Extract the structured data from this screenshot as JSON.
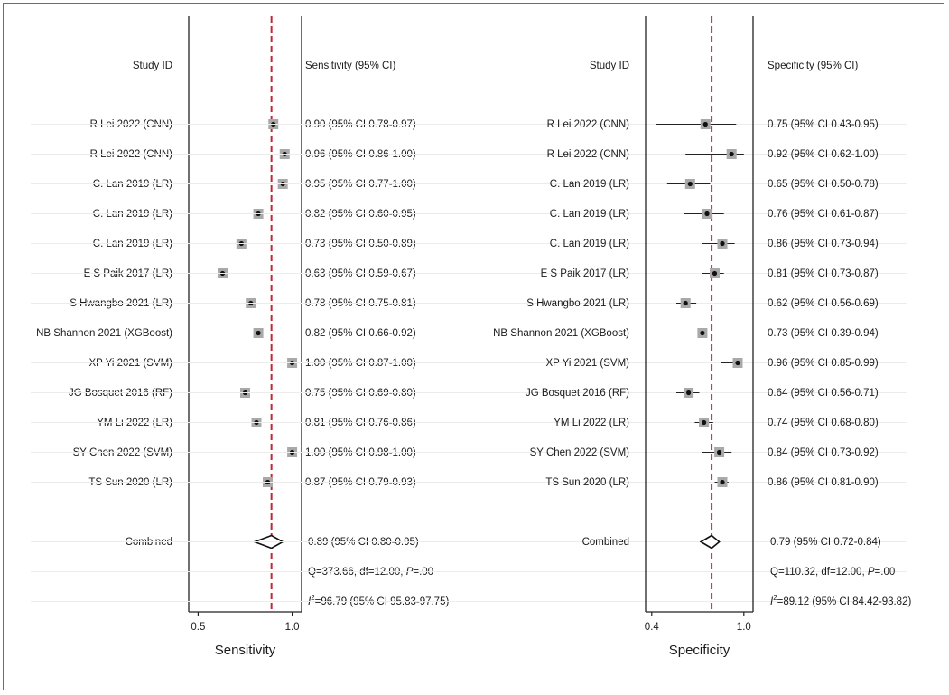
{
  "chart_data": [
    {
      "type": "forest",
      "xlabel": "Sensitivity",
      "study_header": "Study ID",
      "value_header": "Sensitivity (95% CI)",
      "xlim": [
        0.45,
        1.05
      ],
      "ticks": [
        0.5,
        1.0
      ],
      "tick_labels": [
        "0.5",
        "1.0"
      ],
      "reference_line": 0.89,
      "studies": [
        {
          "name": "R Lei 2022 (CNN)",
          "est": 0.9,
          "lo": 0.78,
          "hi": 0.97,
          "text": "0.90 (95% CI 0.78-0.97)"
        },
        {
          "name": "R Lei 2022 (CNN)",
          "est": 0.96,
          "lo": 0.86,
          "hi": 1.0,
          "text": "0.96 (95% CI 0.86-1.00)"
        },
        {
          "name": "C. Lan 2019 (LR)",
          "est": 0.95,
          "lo": 0.77,
          "hi": 1.0,
          "text": "0.95 (95% CI 0.77-1.00)"
        },
        {
          "name": "C. Lan 2019 (LR)",
          "est": 0.82,
          "lo": 0.6,
          "hi": 0.95,
          "text": "0.82 (95% CI 0.60-0.95)"
        },
        {
          "name": "C. Lan 2019 (LR)",
          "est": 0.73,
          "lo": 0.5,
          "hi": 0.89,
          "text": "0.73 (95% CI 0.50-0.89)"
        },
        {
          "name": "E S Paik 2017 (LR)",
          "est": 0.63,
          "lo": 0.59,
          "hi": 0.67,
          "text": "0.63 (95% CI 0.59-0.67)"
        },
        {
          "name": "S Hwangbo 2021 (LR)",
          "est": 0.78,
          "lo": 0.75,
          "hi": 0.81,
          "text": "0.78 (95% CI 0.75-0.81)"
        },
        {
          "name": "NB Shannon 2021 (XGBoost)",
          "est": 0.82,
          "lo": 0.66,
          "hi": 0.92,
          "text": "0.82 (95% CI 0.66-0.92)"
        },
        {
          "name": "XP Yi 2021 (SVM)",
          "est": 1.0,
          "lo": 0.87,
          "hi": 1.0,
          "text": "1.00 (95% CI 0.87-1.00)"
        },
        {
          "name": "JG Bosquet 2016 (RF)",
          "est": 0.75,
          "lo": 0.69,
          "hi": 0.8,
          "text": "0.75 (95% CI 0.69-0.80)"
        },
        {
          "name": "YM Li 2022 (LR)",
          "est": 0.81,
          "lo": 0.76,
          "hi": 0.86,
          "text": "0.81 (95% CI 0.76-0.86)"
        },
        {
          "name": "SY Chen 2022 (SVM)",
          "est": 1.0,
          "lo": 0.98,
          "hi": 1.0,
          "text": "1.00 (95% CI 0.98-1.00)"
        },
        {
          "name": "TS Sun 2020 (LR)",
          "est": 0.87,
          "lo": 0.79,
          "hi": 0.93,
          "text": "0.87 (95% CI 0.79-0.93)"
        }
      ],
      "combined": {
        "name": "Combined",
        "est": 0.89,
        "lo": 0.8,
        "hi": 0.95,
        "text": "0.89 (95% CI 0.80-0.95)"
      },
      "heterogeneity": {
        "q_text": "Q=373.66, df=12.00, ",
        "p_label": "P",
        "p_text": "=.00",
        "i2_symbol": "I",
        "i2_exponent": "2",
        "i2_text": "=96.79 (95% CI 95.83-97.75)"
      }
    },
    {
      "type": "forest",
      "xlabel": "Specificity",
      "study_header": "Study ID",
      "value_header": "Specificity (95% CI)",
      "xlim": [
        0.36,
        1.06
      ],
      "ticks": [
        0.4,
        1.0
      ],
      "tick_labels": [
        "0.4",
        "1.0"
      ],
      "reference_line": 0.79,
      "studies": [
        {
          "name": "R Lei 2022 (CNN)",
          "est": 0.75,
          "lo": 0.43,
          "hi": 0.95,
          "text": "0.75 (95% CI 0.43-0.95)"
        },
        {
          "name": "R Lei 2022 (CNN)",
          "est": 0.92,
          "lo": 0.62,
          "hi": 1.0,
          "text": "0.92 (95% CI 0.62-1.00)"
        },
        {
          "name": "C. Lan 2019 (LR)",
          "est": 0.65,
          "lo": 0.5,
          "hi": 0.78,
          "text": "0.65 (95% CI 0.50-0.78)"
        },
        {
          "name": "C. Lan 2019 (LR)",
          "est": 0.76,
          "lo": 0.61,
          "hi": 0.87,
          "text": "0.76 (95% CI 0.61-0.87)"
        },
        {
          "name": "C. Lan 2019 (LR)",
          "est": 0.86,
          "lo": 0.73,
          "hi": 0.94,
          "text": "0.86 (95% CI 0.73-0.94)"
        },
        {
          "name": "E S Paik 2017 (LR)",
          "est": 0.81,
          "lo": 0.73,
          "hi": 0.87,
          "text": "0.81 (95% CI 0.73-0.87)"
        },
        {
          "name": "S Hwangbo 2021 (LR)",
          "est": 0.62,
          "lo": 0.56,
          "hi": 0.69,
          "text": "0.62 (95% CI 0.56-0.69)"
        },
        {
          "name": "NB Shannon 2021 (XGBoost)",
          "est": 0.73,
          "lo": 0.39,
          "hi": 0.94,
          "text": "0.73 (95% CI 0.39-0.94)"
        },
        {
          "name": "XP Yi 2021 (SVM)",
          "est": 0.96,
          "lo": 0.85,
          "hi": 0.99,
          "text": "0.96 (95% CI 0.85-0.99)"
        },
        {
          "name": "JG Bosquet 2016 (RF)",
          "est": 0.64,
          "lo": 0.56,
          "hi": 0.71,
          "text": "0.64 (95% CI 0.56-0.71)"
        },
        {
          "name": "YM Li 2022 (LR)",
          "est": 0.74,
          "lo": 0.68,
          "hi": 0.8,
          "text": "0.74 (95% CI 0.68-0.80)"
        },
        {
          "name": "SY Chen 2022 (SVM)",
          "est": 0.84,
          "lo": 0.73,
          "hi": 0.92,
          "text": "0.84 (95% CI 0.73-0.92)"
        },
        {
          "name": "TS Sun 2020 (LR)",
          "est": 0.86,
          "lo": 0.81,
          "hi": 0.9,
          "text": "0.86 (95% CI 0.81-0.90)"
        }
      ],
      "combined": {
        "name": "Combined",
        "est": 0.79,
        "lo": 0.72,
        "hi": 0.84,
        "text": "0.79 (95% CI 0.72-0.84)"
      },
      "heterogeneity": {
        "q_text": "Q=110.32, df=12.00, ",
        "p_label": "P",
        "p_text": "=.00",
        "i2_symbol": "I",
        "i2_exponent": "2",
        "i2_text": "=89.12 (95% CI 84.42-93.82)"
      }
    }
  ],
  "colors": {
    "reference_line": "#c0283a",
    "marker_box": "#a9a9a9",
    "marker_dot": "#111111",
    "gridline": "#ececec",
    "axis": "#222222"
  }
}
